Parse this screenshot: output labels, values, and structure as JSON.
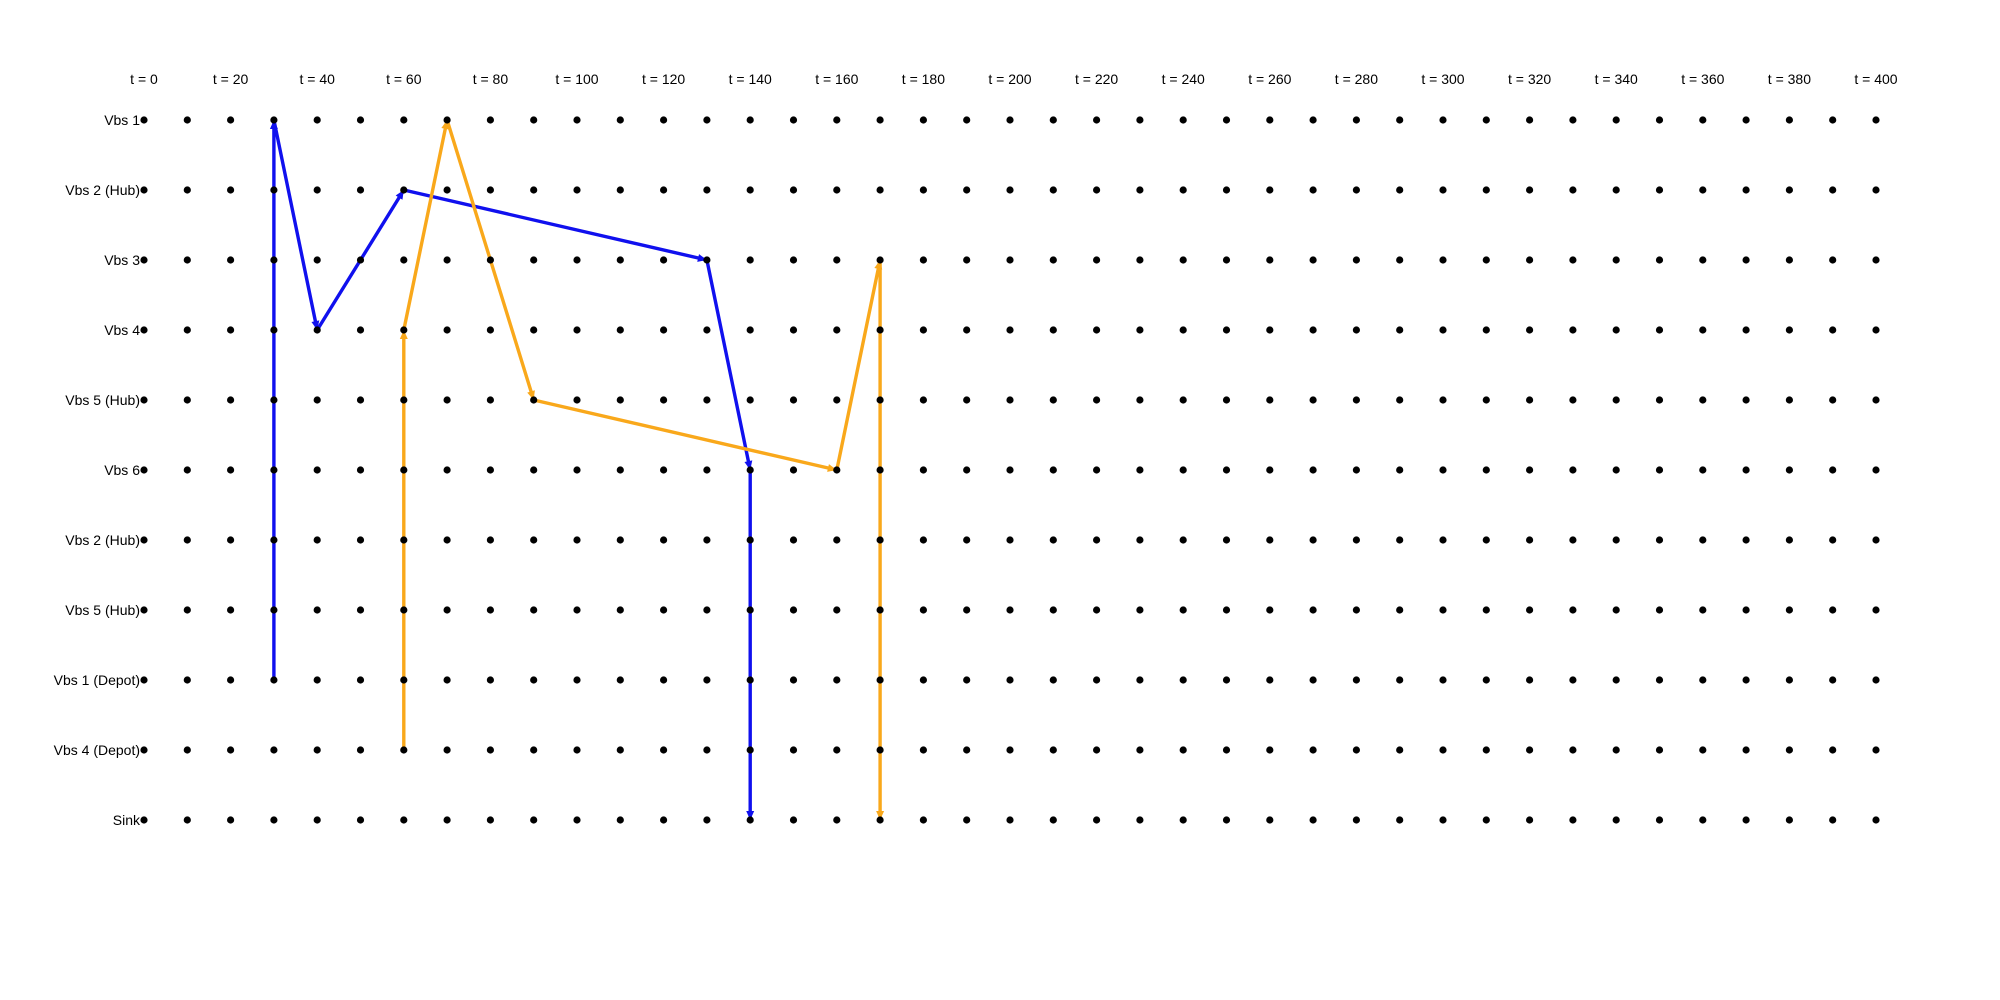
{
  "chart_data": {
    "type": "time-expanded-network",
    "time_step": 10,
    "time_labels": [
      {
        "t": 0,
        "label": "t = 0"
      },
      {
        "t": 20,
        "label": "t = 20"
      },
      {
        "t": 40,
        "label": "t = 40"
      },
      {
        "t": 60,
        "label": "t = 60"
      },
      {
        "t": 80,
        "label": "t = 80"
      },
      {
        "t": 100,
        "label": "t = 100"
      },
      {
        "t": 120,
        "label": "t = 120"
      },
      {
        "t": 140,
        "label": "t = 140"
      },
      {
        "t": 160,
        "label": "t = 160"
      },
      {
        "t": 180,
        "label": "t = 180"
      },
      {
        "t": 200,
        "label": "t = 200"
      },
      {
        "t": 220,
        "label": "t = 220"
      },
      {
        "t": 240,
        "label": "t = 240"
      },
      {
        "t": 260,
        "label": "t = 260"
      },
      {
        "t": 280,
        "label": "t = 280"
      },
      {
        "t": 300,
        "label": "t = 300"
      },
      {
        "t": 320,
        "label": "t = 320"
      },
      {
        "t": 340,
        "label": "t = 340"
      },
      {
        "t": 360,
        "label": "t = 360"
      },
      {
        "t": 380,
        "label": "t = 380"
      },
      {
        "t": 400,
        "label": "t = 400"
      }
    ],
    "rows": [
      "Vbs 1",
      "Vbs 2 (Hub)",
      "Vbs 3",
      "Vbs 4",
      "Vbs 5 (Hub)",
      "Vbs 6",
      "Vbs 2 (Hub)",
      "Vbs 5 (Hub)",
      "Vbs 1 (Depot)",
      "Vbs 4 (Depot)",
      "Sink"
    ],
    "node_color": "#000000",
    "routes": [
      {
        "color": "#1010ee",
        "path": [
          {
            "t": 30,
            "row": 8
          },
          {
            "t": 30,
            "row": 0
          },
          {
            "t": 40,
            "row": 3
          },
          {
            "t": 60,
            "row": 1
          },
          {
            "t": 130,
            "row": 2
          },
          {
            "t": 140,
            "row": 5
          },
          {
            "t": 140,
            "row": 10
          }
        ]
      },
      {
        "color": "#f9a81b",
        "path": [
          {
            "t": 60,
            "row": 9
          },
          {
            "t": 60,
            "row": 3
          },
          {
            "t": 70,
            "row": 0
          },
          {
            "t": 90,
            "row": 4
          },
          {
            "t": 160,
            "row": 5
          },
          {
            "t": 170,
            "row": 2
          },
          {
            "t": 170,
            "row": 10
          }
        ]
      }
    ]
  }
}
